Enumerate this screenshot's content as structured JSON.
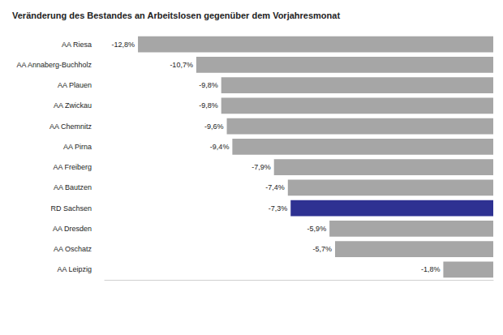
{
  "chart_data": {
    "type": "bar",
    "title": "Veränderung des Bestandes an Arbeitslosen gegenüber dem Vorjahresmonat",
    "orientation": "horizontal",
    "categories": [
      "AA Riesa",
      "AA Annaberg-Buchholz",
      "AA Plauen",
      "AA Zwickau",
      "AA Chemnitz",
      "AA Pirna",
      "AA Freiberg",
      "AA Bautzen",
      "RD Sachsen",
      "AA Dresden",
      "AA Oschatz",
      "AA Leipzig"
    ],
    "values": [
      -12.8,
      -10.7,
      -9.8,
      -9.8,
      -9.6,
      -9.4,
      -7.9,
      -7.4,
      -7.3,
      -5.9,
      -5.7,
      -1.8
    ],
    "value_labels": [
      "-12,8%",
      "-10,7%",
      "-9,8%",
      "-9,8%",
      "-9,6%",
      "-9,4%",
      "-7,9%",
      "-7,4%",
      "-7,3%",
      "-5,9%",
      "-5,7%",
      "-1,8%"
    ],
    "colors": [
      "#a6a6a6",
      "#a6a6a6",
      "#a6a6a6",
      "#a6a6a6",
      "#a6a6a6",
      "#a6a6a6",
      "#a6a6a6",
      "#a6a6a6",
      "#2e3192",
      "#a6a6a6",
      "#a6a6a6",
      "#a6a6a6"
    ],
    "xlim": [
      -14,
      0
    ],
    "data_labels": true,
    "tick_labels": "y",
    "grid": false
  }
}
